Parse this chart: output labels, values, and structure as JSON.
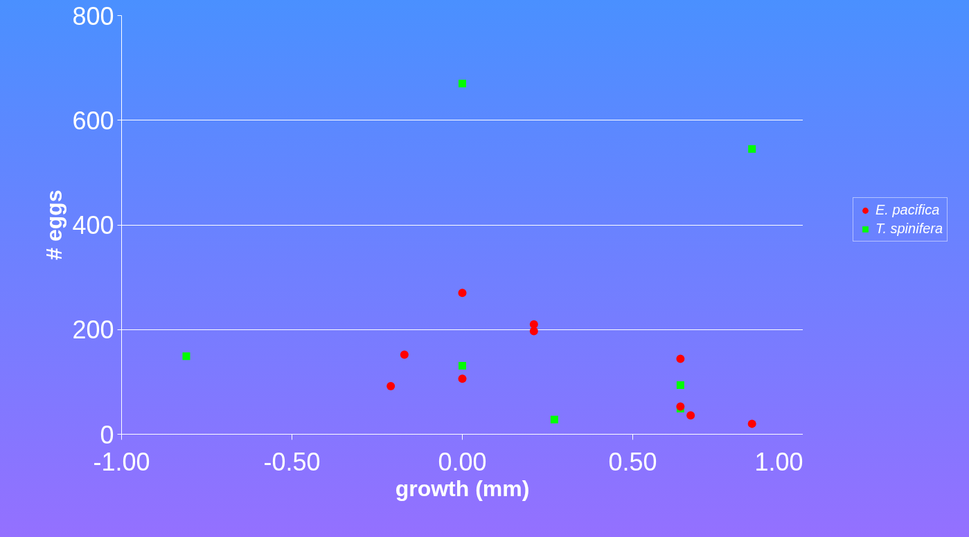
{
  "chart_data": {
    "type": "scatter",
    "xlabel": "growth (mm)",
    "ylabel": "# eggs",
    "xlim": [
      -1,
      1
    ],
    "ylim": [
      0,
      800
    ],
    "xticks": [
      {
        "value": -1,
        "label": "-1.00"
      },
      {
        "value": -0.5,
        "label": "-0.50"
      },
      {
        "value": 0,
        "label": "0.00"
      },
      {
        "value": 0.5,
        "label": "0.50"
      },
      {
        "value": 1,
        "label": "1.00"
      }
    ],
    "yticks": [
      0,
      200,
      400,
      600,
      800
    ],
    "grid": "y",
    "legend": "right",
    "series": [
      {
        "name": "E. pacifica",
        "color": "#ff0000",
        "marker": "circle",
        "x": [
          -0.21,
          -0.17,
          0.0,
          0.0,
          0.21,
          0.21,
          0.64,
          0.64,
          0.67,
          0.85
        ],
        "values": [
          92,
          152,
          270,
          106,
          210,
          197,
          144,
          53,
          36,
          20
        ]
      },
      {
        "name": "T. spinifera",
        "color": "#00ff00",
        "marker": "square",
        "x": [
          -0.81,
          0.0,
          0.0,
          0.27,
          0.64,
          0.64,
          0.85
        ],
        "values": [
          149,
          670,
          131,
          28,
          94,
          49,
          545
        ]
      }
    ]
  }
}
